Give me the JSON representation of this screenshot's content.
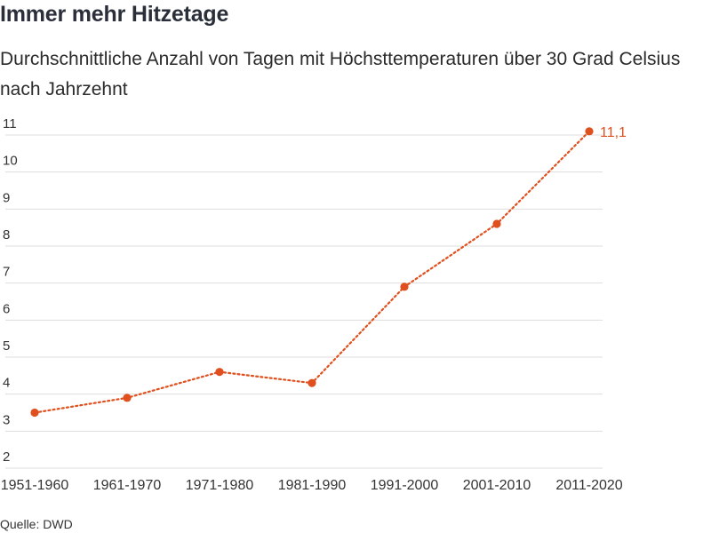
{
  "title": "Immer mehr Hitzetage",
  "subtitle": "Durchschnittliche Anzahl von Tagen mit Höchsttemperaturen über 30 Grad Celsius nach Jahrzehnt",
  "source": "Quelle: DWD",
  "colors": {
    "series": "#e0501e",
    "grid": "#dddddd",
    "text": "#333333"
  },
  "chart_data": {
    "type": "line",
    "title": "Immer mehr Hitzetage",
    "subtitle": "Durchschnittliche Anzahl von Tagen mit Höchsttemperaturen über 30 Grad Celsius nach Jahrzehnt",
    "xlabel": "",
    "ylabel": "",
    "categories": [
      "1951-1960",
      "1961-1970",
      "1971-1980",
      "1981-1990",
      "1991-2000",
      "2001-2010",
      "2011-2020"
    ],
    "series": [
      {
        "values": [
          3.5,
          3.9,
          4.6,
          4.3,
          6.9,
          8.6,
          11.1
        ]
      }
    ],
    "ylim": [
      2,
      11
    ],
    "yticks": [
      "2",
      "3",
      "4",
      "5",
      "6",
      "7",
      "8",
      "9",
      "10",
      "11"
    ],
    "data_labels": [
      {
        "index": 6,
        "text": "11,1"
      }
    ],
    "line_style": "dotted",
    "grid": true
  }
}
